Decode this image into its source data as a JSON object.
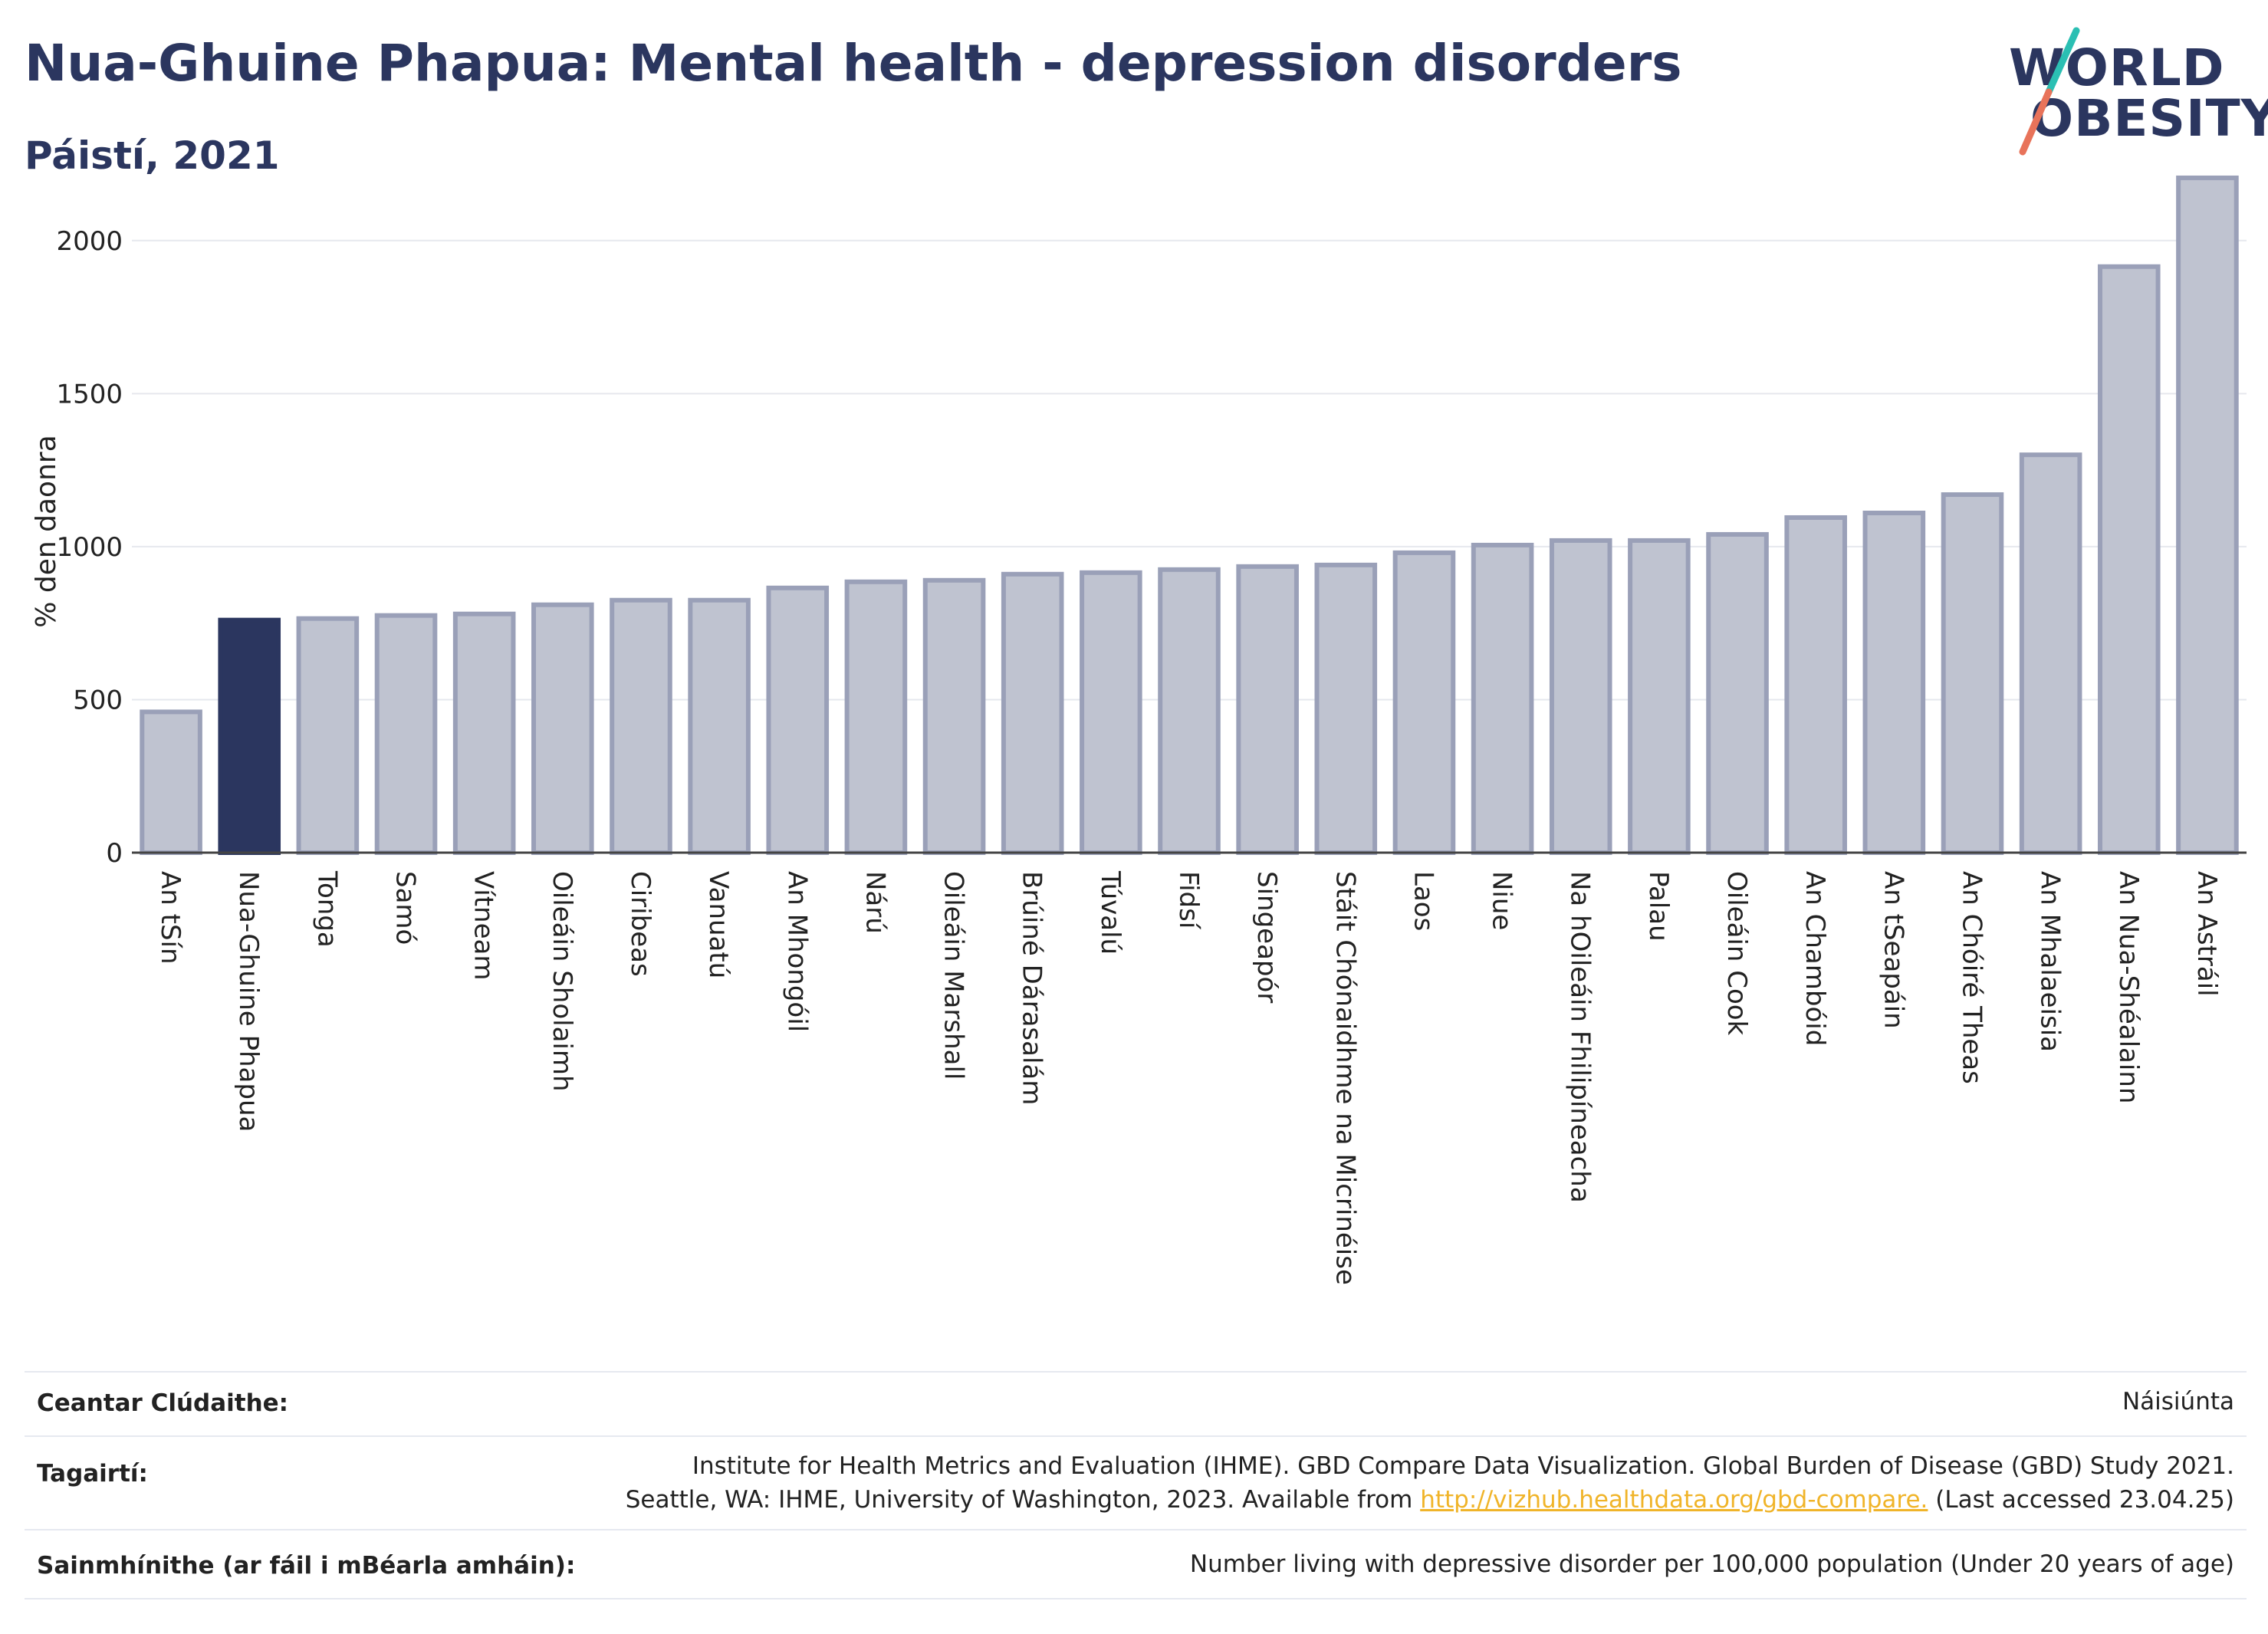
{
  "header": {
    "title": "Nua-Ghuine Phapua: Mental health - depression disorders",
    "subtitle": "Páistí, 2021"
  },
  "logo": {
    "line1": "WORLD",
    "line2": "OBESITY",
    "accent_teal": "#2bbfb3",
    "accent_coral": "#e8735a"
  },
  "colors": {
    "highlight": "#2b365f",
    "bar": "#bfc3d0",
    "bar_edge": "#9aa0b8",
    "axis": "#444444",
    "grid": "#e6e8ee"
  },
  "chart_data": {
    "type": "bar",
    "ylabel": "% den daonra",
    "ylim": [
      0,
      2250
    ],
    "yticks": [
      0,
      500,
      1000,
      1500,
      2000
    ],
    "highlight": "Nua-Ghuine Phapua",
    "categories": [
      "An tSín",
      "Nua-Ghuine Phapua",
      "Tonga",
      "Samó",
      "Vítneam",
      "Oileáin Sholaimh",
      "Ciribeas",
      "Vanuatú",
      "An Mhongóil",
      "Nárú",
      "Oileáin Marshall",
      "Brúiné Dárasalám",
      "Túvalú",
      "Fidsí",
      "Singeapór",
      "Stáit Chónaidhme na Micrinéise",
      "Laos",
      "Niue",
      "Na hOileáin Fhilipíneacha",
      "Palau",
      "Oileáin Cook",
      "An Chambóid",
      "An tSeapáin",
      "An Chóiré Theas",
      "An Mhalaeisia",
      "An Nua-Shéalainn",
      "An Astráil"
    ],
    "values": [
      460,
      760,
      765,
      775,
      780,
      810,
      825,
      825,
      865,
      885,
      890,
      910,
      915,
      925,
      935,
      940,
      980,
      1005,
      1020,
      1020,
      1040,
      1095,
      1110,
      1170,
      1300,
      1915,
      2205
    ]
  },
  "footer": {
    "coverage_label": "Ceantar Clúdaithe:",
    "coverage_value": "Náisiúnta",
    "references_label": "Tagairtí:",
    "references_line1": "Institute for Health Metrics and Evaluation (IHME). GBD Compare Data Visualization. Global Burden of Disease (GBD) Study 2021.",
    "references_line2_prefix": "Seattle, WA: IHME, University of Washington, 2023. Available from",
    "references_link": "http://vizhub.healthdata.org/gbd-compare.",
    "references_line2_suffix": "(Last accessed 23.04.25)",
    "definitions_label": "Sainmhínithe (ar fáil i mBéarla amháin):",
    "definitions_value": "Number living with depressive disorder per 100,000 population (Under 20 years of age)"
  }
}
